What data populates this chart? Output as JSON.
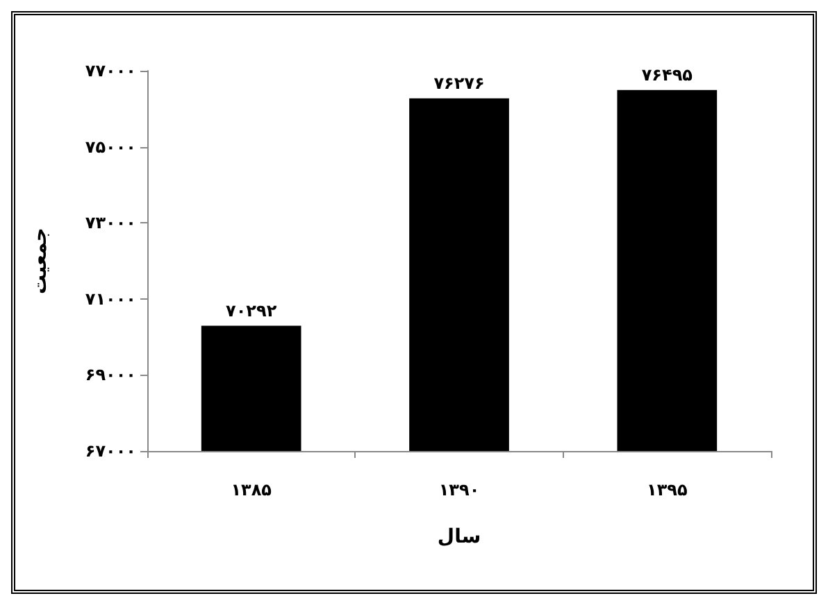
{
  "chart_data": {
    "type": "bar",
    "xlabel": "سال",
    "ylabel": "جمعیت",
    "categories": [
      "۱۳۸۵",
      "۱۳۹۰",
      "۱۳۹۵"
    ],
    "values": [
      70292,
      76276,
      76495
    ],
    "color": "#000000",
    "value_labels": [
      "۷۰۲۹۲",
      "۷۶۲۷۶",
      "۷۶۴۹۵"
    ],
    "ylim": [
      67000,
      77000
    ],
    "yticks": [
      {
        "value": 67000,
        "label": "۶۷۰۰۰"
      },
      {
        "value": 69000,
        "label": "۶۹۰۰۰"
      },
      {
        "value": 71000,
        "label": "۷۱۰۰۰"
      },
      {
        "value": 73000,
        "label": "۷۳۰۰۰"
      },
      {
        "value": 75000,
        "label": "۷۵۰۰۰"
      },
      {
        "value": 77000,
        "label": "۷۷۰۰۰"
      }
    ],
    "grid": false
  }
}
